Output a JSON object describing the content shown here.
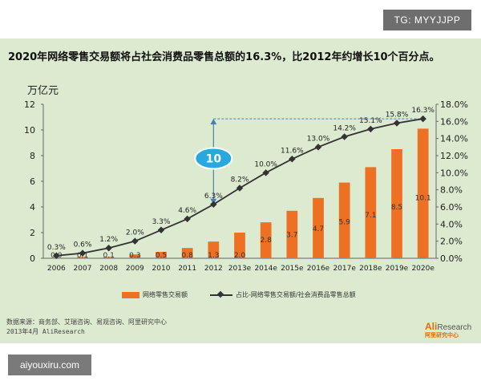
{
  "watermark_top": "TG: MYYJJPP",
  "watermark_bottom": "aiyouxiru.com",
  "headline": "2020年网络零售交易额将占社会消费品零售总额的16.3%，比2012年约增长10个百分点。",
  "source": "数据来源：商务部、艾瑞咨询、易观咨询、阿里研究中心",
  "date": "2013年4月 AliResearch",
  "logo": {
    "ali": "Ali",
    "research": "Research",
    "cn": "阿里研究中心"
  },
  "colors": {
    "bar": "#ee7022",
    "line": "#333333",
    "background": "#dcead0",
    "callout": "#29a8e0"
  },
  "chart_data": {
    "type": "bar",
    "ylabel": "万亿元",
    "categories": [
      "2006",
      "2007",
      "2008",
      "2009",
      "2010",
      "2011",
      "2012",
      "2013e",
      "2014e",
      "2015e",
      "2016e",
      "2017e",
      "2018e",
      "2019e",
      "2020e"
    ],
    "ylim": [
      0,
      12
    ],
    "yticks": [
      0,
      2,
      4,
      6,
      8,
      10,
      12
    ],
    "y2lim": [
      0,
      18
    ],
    "y2ticks": [
      "0.0%",
      "2.0%",
      "4.0%",
      "6.0%",
      "8.0%",
      "10.0%",
      "12.0%",
      "14.0%",
      "16.0%",
      "18.0%"
    ],
    "series": [
      {
        "name": "网络零售交易额",
        "type": "bar",
        "values": [
          0.0,
          0.1,
          0.1,
          0.3,
          0.5,
          0.8,
          1.3,
          2.0,
          2.8,
          3.7,
          4.7,
          5.9,
          7.1,
          8.5,
          10.1
        ],
        "labels": [
          "0.0",
          "0.1",
          "0.1",
          "0.3",
          "0.5",
          "0.8",
          "1.3",
          "2.0",
          "2.8",
          "3.7",
          "4.7",
          "5.9",
          "7.1",
          "8.5",
          "10.1"
        ]
      },
      {
        "name": "占比-网络零售交易额/社会消费品零售总额",
        "type": "line",
        "axis": "right",
        "values": [
          0.3,
          0.6,
          1.2,
          2.0,
          3.3,
          4.6,
          6.3,
          8.2,
          10.0,
          11.6,
          13.0,
          14.2,
          15.1,
          15.8,
          16.3
        ],
        "labels": [
          "0.3%",
          "0.6%",
          "1.2%",
          "2.0%",
          "3.3%",
          "4.6%",
          "6.3%",
          "8.2%",
          "10.0%",
          "11.6%",
          "13.0%",
          "14.2%",
          "15.1%",
          "15.8%",
          "16.3%"
        ]
      }
    ],
    "annotation": {
      "text": "10",
      "from_category": "2012",
      "to_category": "2020e"
    },
    "legend_position": "bottom",
    "grid": false
  }
}
